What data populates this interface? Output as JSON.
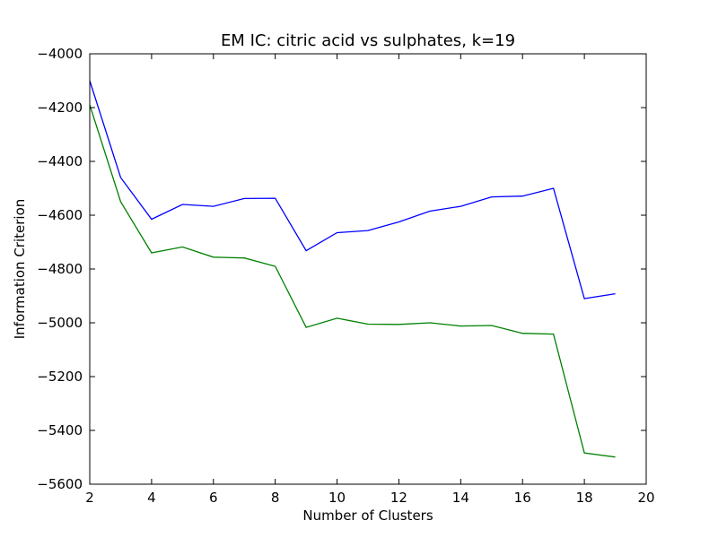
{
  "chart_data": {
    "type": "line",
    "title": "EM IC: citric acid vs sulphates, k=19",
    "xlabel": "Number of Clusters",
    "ylabel": "Information Criterion",
    "xlim": [
      2,
      20
    ],
    "ylim": [
      -5600,
      -4000
    ],
    "x_ticks": [
      2,
      4,
      6,
      8,
      10,
      12,
      14,
      16,
      18,
      20
    ],
    "y_ticks": [
      -4000,
      -4200,
      -4400,
      -4600,
      -4800,
      -5000,
      -5200,
      -5400,
      -5600
    ],
    "grid": false,
    "legend": "none",
    "x": [
      2,
      3,
      4,
      5,
      6,
      7,
      8,
      9,
      10,
      11,
      12,
      13,
      14,
      15,
      16,
      17,
      18,
      19
    ],
    "series": [
      {
        "color": "#0000ff",
        "values": [
          -4100,
          -4460,
          -4615,
          -4560,
          -4567,
          -4538,
          -4537,
          -4732,
          -4665,
          -4657,
          -4625,
          -4585,
          -4567,
          -4532,
          -4529,
          -4500,
          -4910,
          -4892
        ]
      },
      {
        "color": "#008000",
        "values": [
          -4190,
          -4550,
          -4740,
          -4718,
          -4756,
          -4759,
          -4790,
          -5017,
          -4983,
          -5005,
          -5006,
          -5000,
          -5012,
          -5010,
          -5039,
          -5042,
          -5484,
          -5499
        ]
      }
    ]
  }
}
